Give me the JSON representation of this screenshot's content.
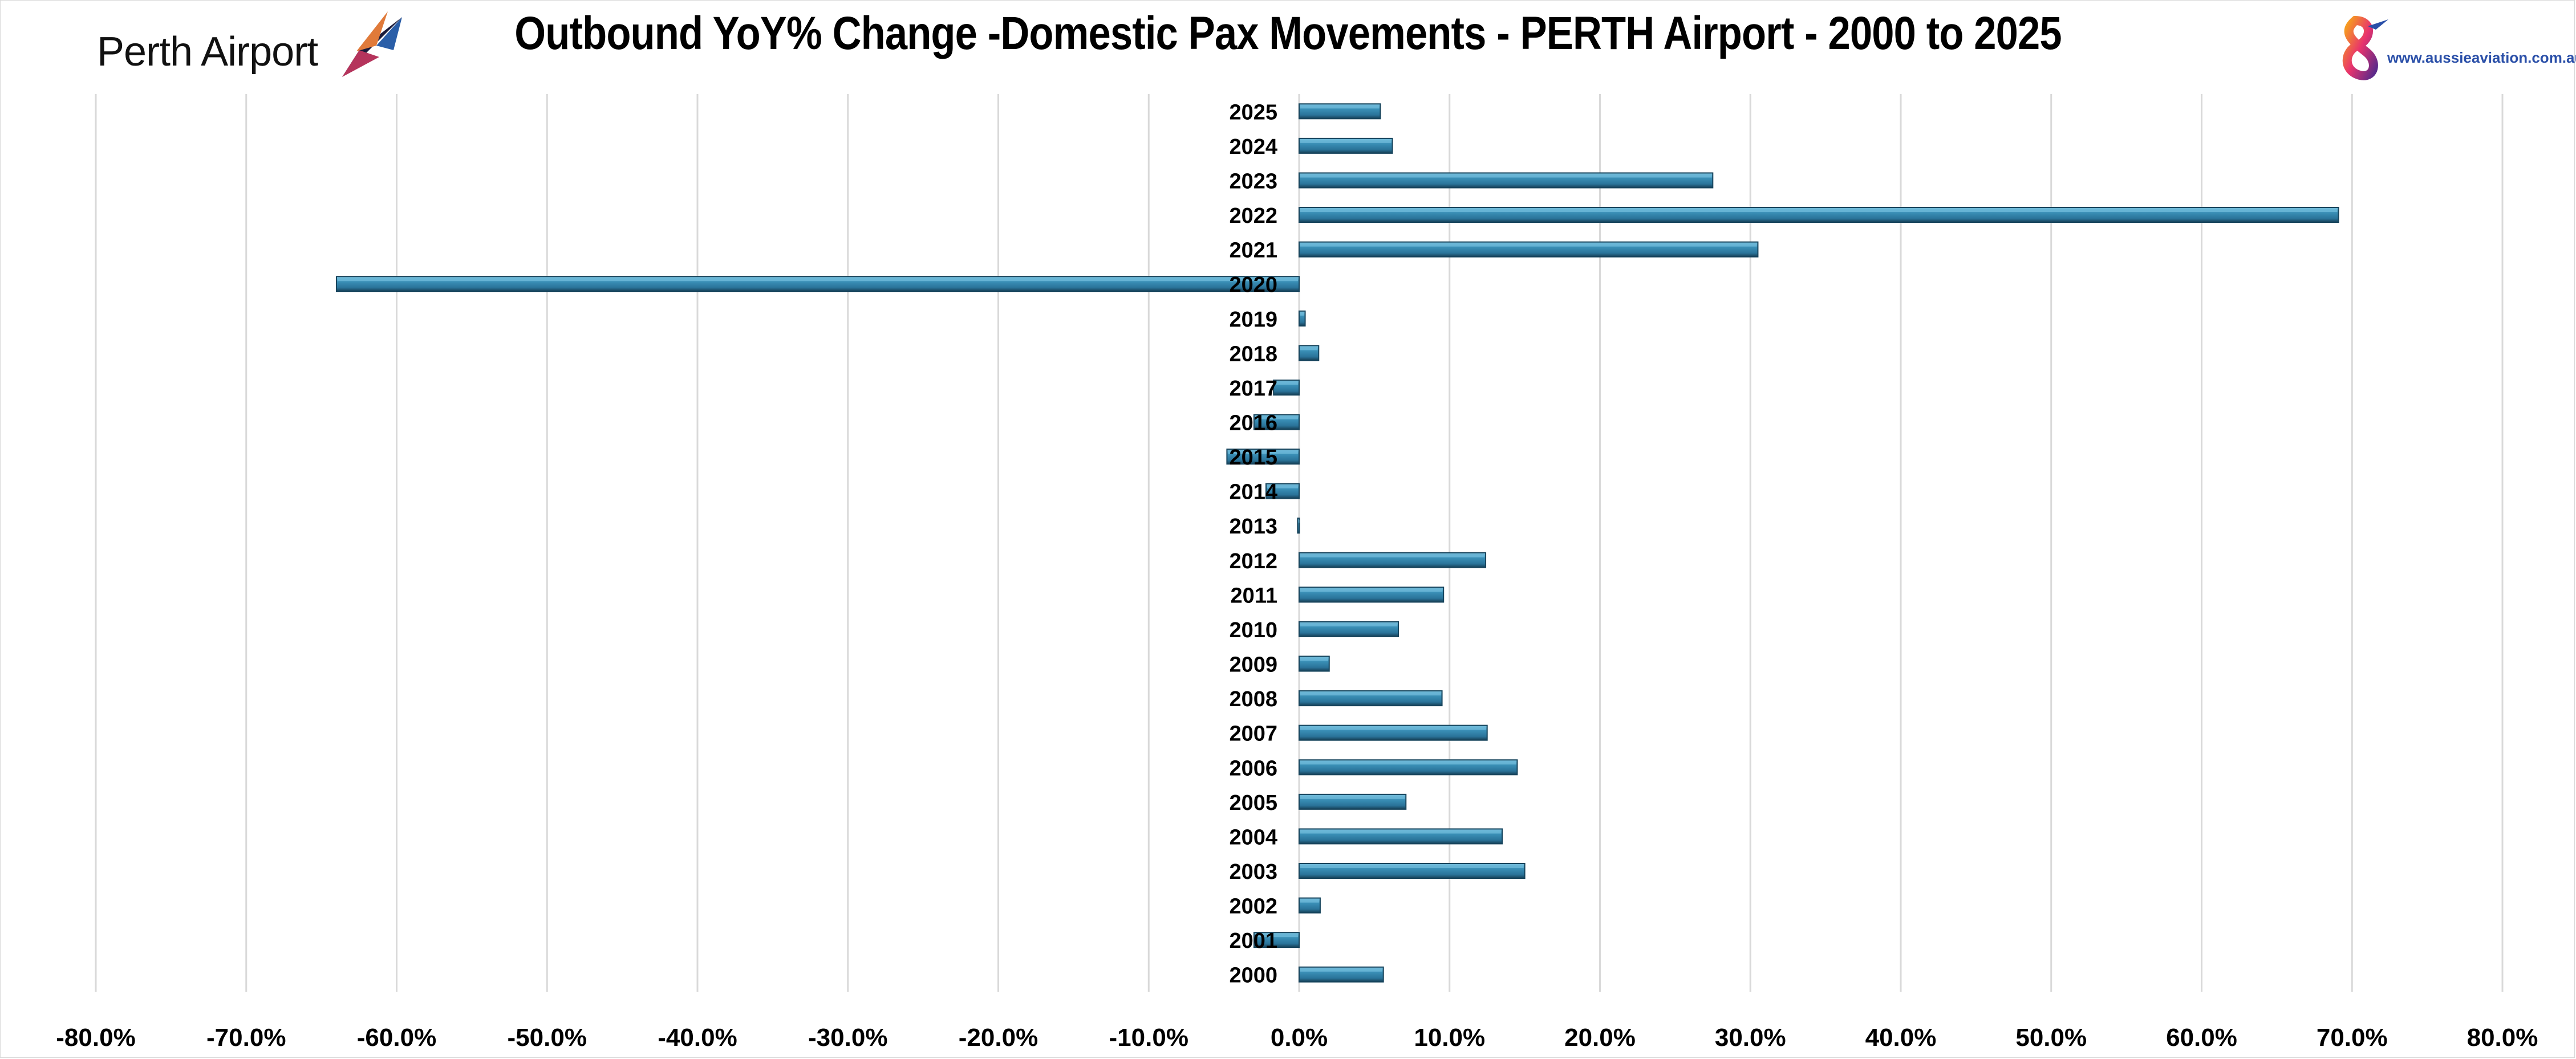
{
  "header": {
    "title": "Outbound YoY% Change -Domestic Pax Movements - PERTH Airport - 2000 to 2025",
    "left_logo_text": "Perth Airport",
    "right_logo_url": "www.aussieaviation.com.au"
  },
  "colors": {
    "bar_fill": "#2e7fa6",
    "bar_highlight": "#6cb8d8",
    "bar_dark": "#17445c",
    "gridline": "#d9d9d9",
    "axis": "#000000"
  },
  "chart_data": {
    "type": "bar",
    "orientation": "horizontal",
    "title": "Outbound YoY% Change -Domestic Pax Movements - PERTH Airport - 2000 to 2025",
    "xlabel": "",
    "ylabel": "",
    "xlim": [
      -80,
      80
    ],
    "x_ticks": [
      -80,
      -70,
      -60,
      -50,
      -40,
      -30,
      -20,
      -10,
      0,
      10,
      20,
      30,
      40,
      50,
      60,
      70,
      80
    ],
    "x_tick_labels": [
      "-80.0%",
      "-70.0%",
      "-60.0%",
      "-50.0%",
      "-40.0%",
      "-30.0%",
      "-20.0%",
      "-10.0%",
      "0.0%",
      "10.0%",
      "20.0%",
      "30.0%",
      "40.0%",
      "50.0%",
      "60.0%",
      "70.0%",
      "80.0%"
    ],
    "grid": true,
    "legend": "none",
    "categories": [
      "2025",
      "2024",
      "2023",
      "2022",
      "2021",
      "2020",
      "2019",
      "2018",
      "2017",
      "2016",
      "2015",
      "2014",
      "2013",
      "2012",
      "2011",
      "2010",
      "2009",
      "2008",
      "2007",
      "2006",
      "2005",
      "2004",
      "2003",
      "2002",
      "2001",
      "2000"
    ],
    "values": [
      5.4,
      6.2,
      27.5,
      69.1,
      30.5,
      -64.0,
      0.4,
      1.3,
      -1.7,
      -3.0,
      -4.8,
      -2.2,
      -0.1,
      12.4,
      9.6,
      6.6,
      2.0,
      9.5,
      12.5,
      14.5,
      7.1,
      13.5,
      15.0,
      1.4,
      -3.0,
      5.6
    ]
  }
}
